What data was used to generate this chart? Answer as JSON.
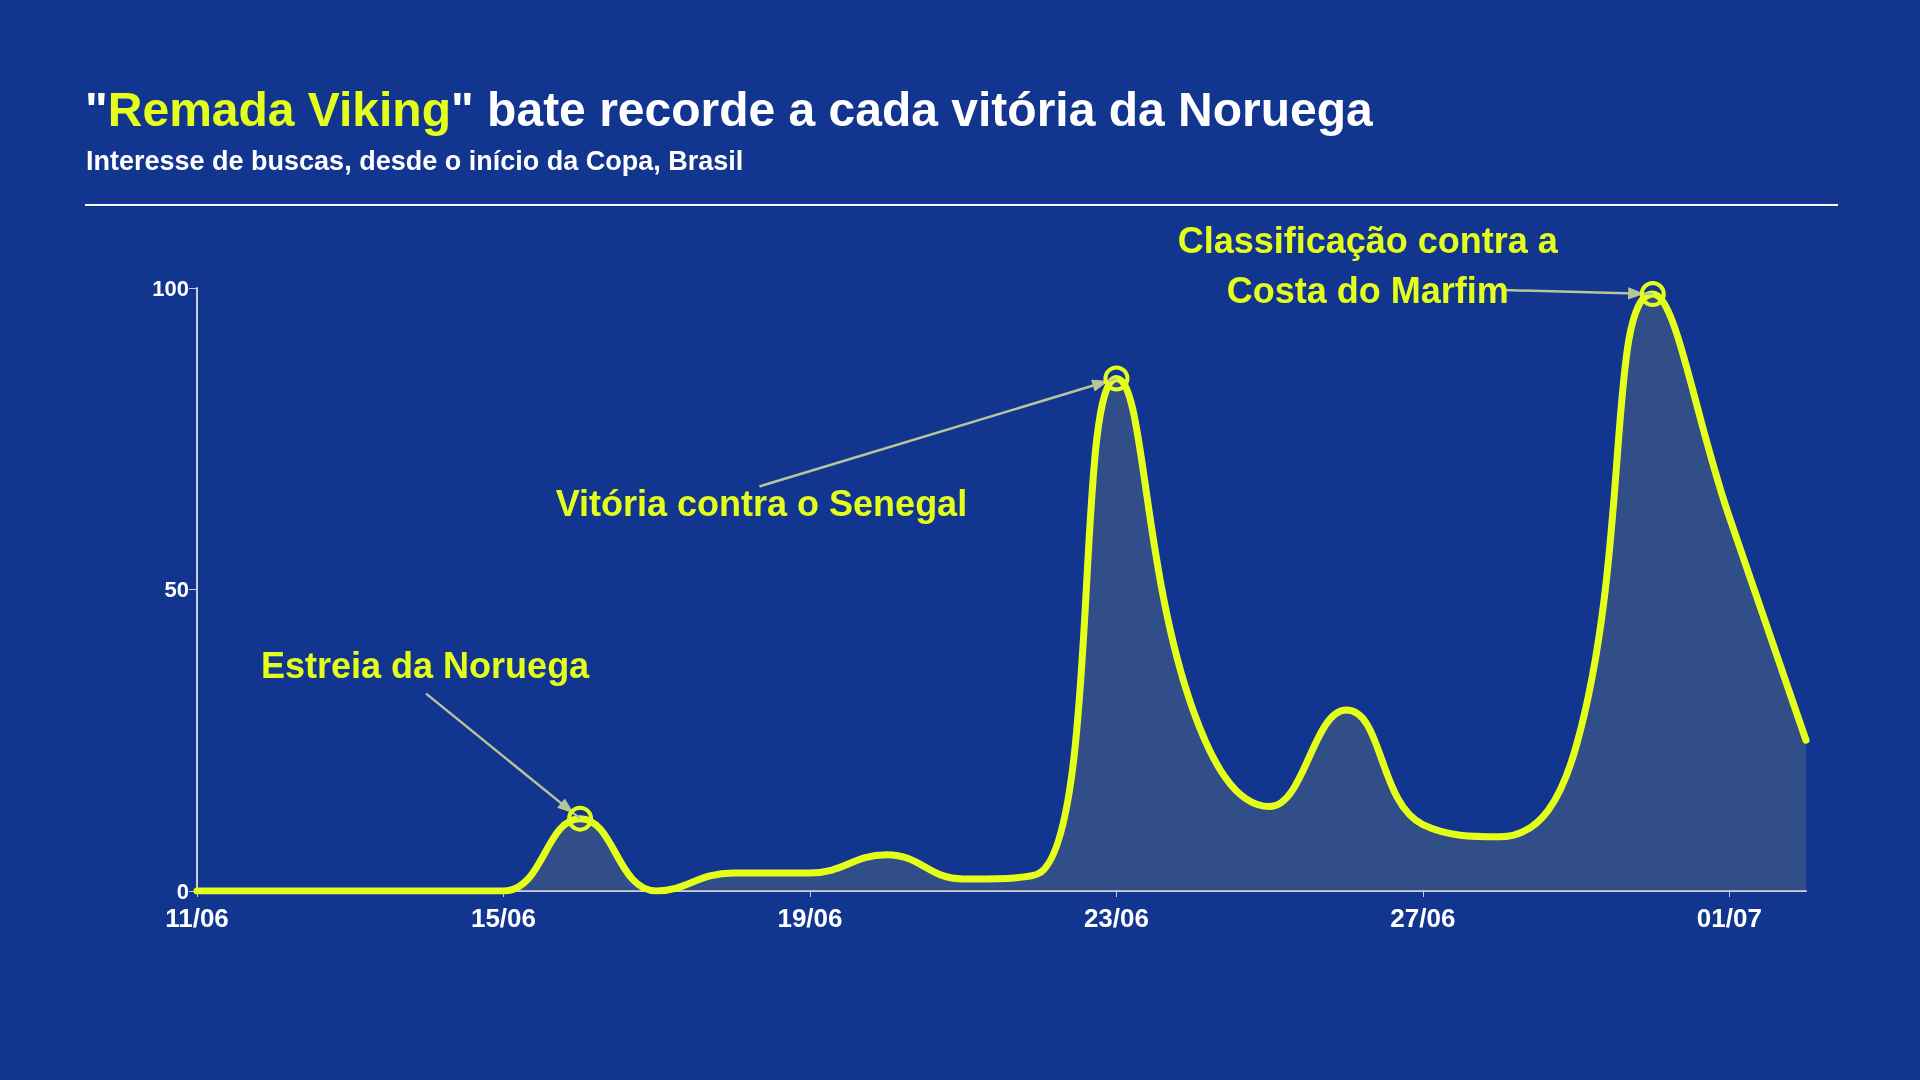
{
  "chart_data": {
    "type": "area",
    "title": "\"Remada Viking\" bate recorde a cada vitória da Noruega",
    "subtitle": "Interesse de buscas, desde o início da Copa, Brasil",
    "x": [
      "--06-11",
      "--06-12",
      "--06-13",
      "--06-14",
      "--06-15",
      "--06-16",
      "--06-17",
      "--06-18",
      "--06-19",
      "--06-20",
      "--06-21",
      "--06-22",
      "--06-23",
      "--06-24",
      "--06-25",
      "--06-26",
      "--06-27",
      "--06-28",
      "--06-29",
      "--06-30",
      "--07-01",
      "--07-02"
    ],
    "series": [
      {
        "color": "#e4ff1a",
        "values": [
          0,
          0,
          0,
          0,
          0,
          12,
          0,
          3,
          3,
          6,
          2,
          3,
          85,
          30,
          14,
          30,
          11,
          9,
          24,
          99,
          62,
          25
        ]
      }
    ],
    "xlim": [
      "--06-11",
      "--07-02"
    ],
    "xticks": [
      {
        "value": "--06-11",
        "label": "11/06"
      },
      {
        "value": "--06-15",
        "label": "15/06"
      },
      {
        "value": "--06-19",
        "label": "19/06"
      },
      {
        "value": "--06-23",
        "label": "23/06"
      },
      {
        "value": "--06-27",
        "label": "27/06"
      },
      {
        "value": "--07-01",
        "label": "01/07"
      }
    ],
    "ylim": [
      0,
      100
    ],
    "yticks": [
      0,
      50,
      100
    ],
    "annotations": [
      {
        "text": "Estreia da Noruega",
        "x": "--06-16",
        "y": 12
      },
      {
        "text": "Vitória contra o Senegal",
        "x": "--06-23",
        "y": 85
      },
      {
        "text": "Classificação contra a Costa do Marfim",
        "x": "--06-30",
        "y": 99
      }
    ],
    "grid": false,
    "marker": "none",
    "line_style": "solid"
  }
}
